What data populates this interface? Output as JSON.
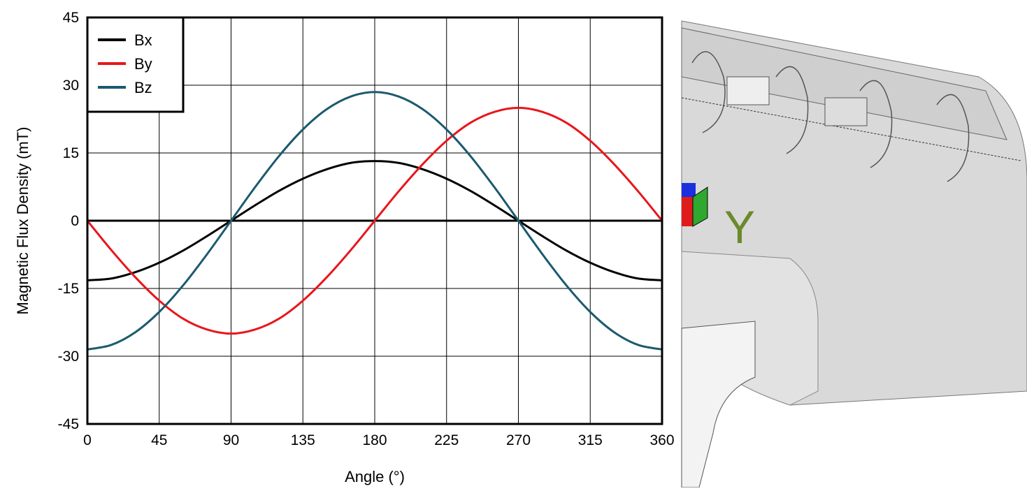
{
  "chart_data": {
    "type": "line",
    "x_label": "Angle (°)",
    "y_label": "Magnetic Flux Density (mT)",
    "x": [
      0,
      15,
      30,
      45,
      60,
      75,
      90,
      105,
      120,
      135,
      150,
      165,
      180,
      195,
      210,
      225,
      240,
      255,
      270,
      285,
      300,
      315,
      330,
      345,
      360
    ],
    "series": [
      {
        "name": "Bx",
        "color": "#000000",
        "values": [
          -13.2,
          -12.8,
          -11.4,
          -9.3,
          -6.6,
          -3.4,
          0,
          3.4,
          6.6,
          9.3,
          11.4,
          12.8,
          13.2,
          12.8,
          11.4,
          9.3,
          6.6,
          3.4,
          0,
          -3.4,
          -6.6,
          -9.3,
          -11.4,
          -12.8,
          -13.2
        ]
      },
      {
        "name": "By",
        "color": "#e8161b",
        "values": [
          0,
          -6.5,
          -12.5,
          -17.7,
          -21.7,
          -24.1,
          -25,
          -24.1,
          -21.7,
          -17.7,
          -12.5,
          -6.5,
          0,
          6.5,
          12.5,
          17.7,
          21.7,
          24.1,
          25,
          24.1,
          21.7,
          17.7,
          12.5,
          6.5,
          0
        ]
      },
      {
        "name": "Bz",
        "color": "#1b5a6e",
        "values": [
          -28.5,
          -27.5,
          -24.7,
          -20.2,
          -14.3,
          -7.4,
          0,
          7.4,
          14.3,
          20.2,
          24.7,
          27.5,
          28.5,
          27.5,
          24.7,
          20.2,
          14.3,
          7.4,
          0,
          -7.4,
          -14.3,
          -20.2,
          -24.7,
          -27.5,
          -28.5
        ]
      }
    ],
    "xlim": [
      0,
      360
    ],
    "xticks": [
      0,
      45,
      90,
      135,
      180,
      225,
      270,
      315,
      360
    ],
    "ylim": [
      -45,
      45
    ],
    "yticks": [
      -45,
      -30,
      -15,
      0,
      15,
      30,
      45
    ],
    "grid": true,
    "legend": "upper-left"
  },
  "image_panel": {
    "axis_label": "Y"
  }
}
